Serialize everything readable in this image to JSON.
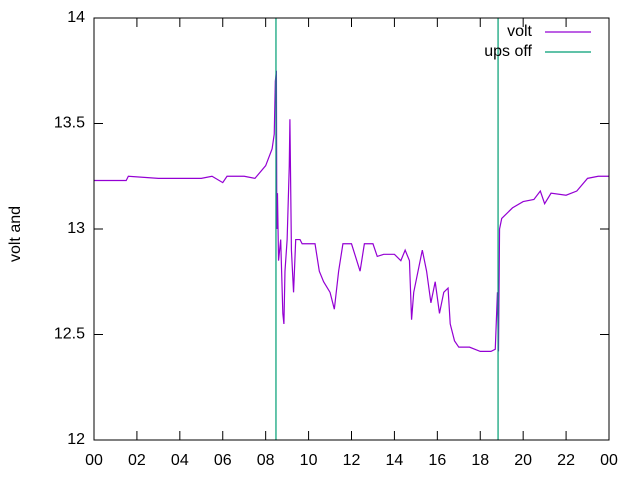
{
  "chart_data": {
    "type": "line",
    "ylabel": "volt and",
    "xlim": [
      0,
      24
    ],
    "xticks": [
      {
        "value": 0,
        "label": "00"
      },
      {
        "value": 2,
        "label": "02"
      },
      {
        "value": 4,
        "label": "04"
      },
      {
        "value": 6,
        "label": "06"
      },
      {
        "value": 8,
        "label": "08"
      },
      10,
      12,
      14,
      16,
      18,
      20,
      22,
      {
        "value": 24,
        "label": "00"
      }
    ],
    "ylim": [
      12,
      14
    ],
    "yticks": [
      12,
      12.5,
      13,
      13.5,
      14
    ],
    "legend": "top-right",
    "series": [
      {
        "name": "volt",
        "color": "#9400d3",
        "style": "line",
        "x": [
          0,
          1.5,
          1.6,
          3,
          4,
          5,
          5.5,
          6,
          6.2,
          7,
          7.5,
          8,
          8.3,
          8.4,
          8.45,
          8.5,
          8.52,
          8.55,
          8.6,
          8.7,
          8.8,
          8.85,
          8.9,
          9.0,
          9.1,
          9.13,
          9.2,
          9.3,
          9.4,
          9.6,
          9.7,
          10,
          10.3,
          10.5,
          10.7,
          11,
          11.2,
          11.4,
          11.6,
          12,
          12.4,
          12.6,
          13,
          13.2,
          13.5,
          14,
          14.3,
          14.5,
          14.7,
          14.8,
          14.9,
          15.3,
          15.5,
          15.7,
          15.9,
          16.1,
          16.3,
          16.5,
          16.6,
          16.8,
          17,
          17.5,
          18,
          18.5,
          18.7,
          18.8,
          18.85,
          18.9,
          19,
          19.5,
          20,
          20.5,
          20.8,
          21,
          21.3,
          22,
          22.5,
          23,
          23.5,
          24
        ],
        "values": [
          13.23,
          13.23,
          13.25,
          13.24,
          13.24,
          13.24,
          13.25,
          13.22,
          13.25,
          13.25,
          13.24,
          13.3,
          13.38,
          13.45,
          13.7,
          13.75,
          13.0,
          13.17,
          12.85,
          12.95,
          12.6,
          12.55,
          12.8,
          12.95,
          13.3,
          13.52,
          12.9,
          12.7,
          12.95,
          12.95,
          12.93,
          12.93,
          12.93,
          12.8,
          12.75,
          12.7,
          12.62,
          12.8,
          12.93,
          12.93,
          12.8,
          12.93,
          12.93,
          12.87,
          12.88,
          12.88,
          12.85,
          12.9,
          12.85,
          12.57,
          12.7,
          12.9,
          12.8,
          12.65,
          12.75,
          12.6,
          12.7,
          12.72,
          12.55,
          12.47,
          12.44,
          12.44,
          12.42,
          12.42,
          12.43,
          12.7,
          12.42,
          13.0,
          13.05,
          13.1,
          13.13,
          13.14,
          13.18,
          13.12,
          13.17,
          13.16,
          13.18,
          13.24,
          13.25,
          13.25
        ]
      },
      {
        "name": "ups off",
        "color": "#009e73",
        "style": "impulses",
        "x": [
          8.48,
          18.83
        ],
        "values": [
          14,
          14
        ]
      }
    ]
  }
}
